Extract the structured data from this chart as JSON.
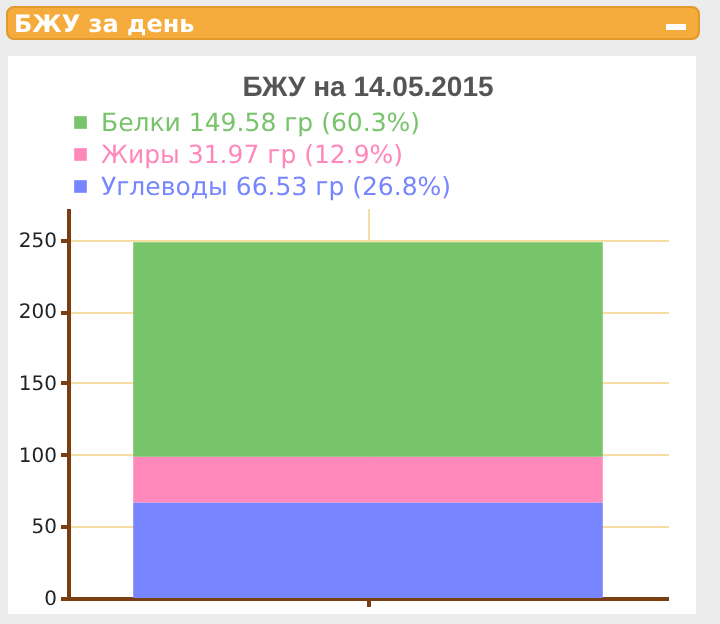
{
  "chart_data": {
    "type": "bar",
    "title": "БЖУ на 14.05.2015",
    "annotations": [
      "БЖУ за день"
    ],
    "categories": [
      null
    ],
    "stacked": true,
    "series": [
      {
        "name": "Углеводы 66.53 гр (26.8%)",
        "color": "#7785ff",
        "values": [
          66.53
        ]
      },
      {
        "name": "Жиры 31.97 гр (12.9%)",
        "color": "#ff88bb",
        "values": [
          31.97
        ]
      },
      {
        "name": "Белки 149.58 гр (60.3%)",
        "color": "#77c46a",
        "values": [
          149.58
        ]
      }
    ],
    "ylim": [
      0,
      272
    ],
    "yticks": [
      0,
      50,
      100,
      150,
      200,
      250
    ],
    "grid": true,
    "legend": "top left"
  }
}
